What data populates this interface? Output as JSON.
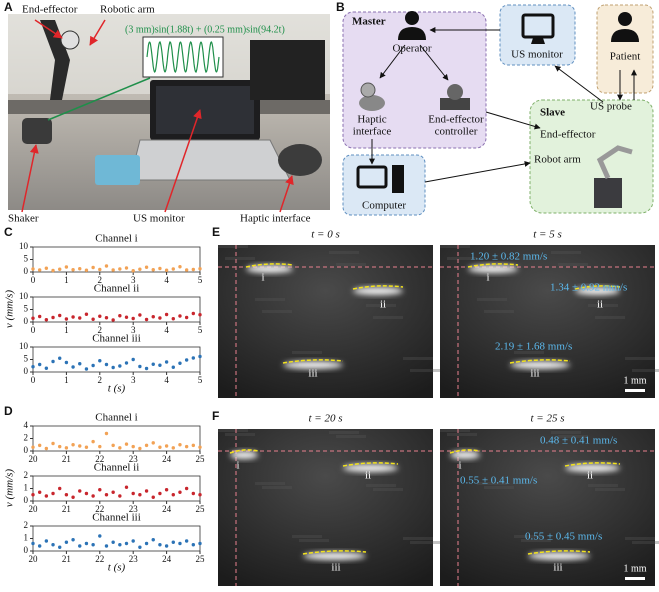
{
  "panel_a": {
    "letter": "A",
    "end_effector": "End-effector",
    "robotic_arm": "Robotic arm",
    "equation": "(3 mm)sin(1.88t) + (0.25 mm)sin(94.2t)",
    "shaker": "Shaker",
    "us_monitor": "US monitor",
    "haptic_interface": "Haptic interface"
  },
  "panel_b": {
    "letter": "B",
    "master": "Master",
    "operator": "Operator",
    "haptic_interface": [
      "Haptic",
      "interface"
    ],
    "end_effector_controller": [
      "End-effector",
      "controller"
    ],
    "us_monitor": "US monitor",
    "patient": "Patient",
    "slave": "Slave",
    "end_effector": "End-effector",
    "robot_arm": "Robot arm",
    "us_probe": "US probe",
    "computer": "Computer"
  },
  "panel_c": {
    "letter": "C",
    "y_label": "v (mm/s)",
    "x_label": "t (s)",
    "x": [
      0,
      0.2,
      0.4,
      0.6,
      0.8,
      1,
      1.2,
      1.4,
      1.6,
      1.8,
      2,
      2.2,
      2.4,
      2.6,
      2.8,
      3,
      3.2,
      3.4,
      3.6,
      3.8,
      4,
      4.2,
      4.4,
      4.6,
      4.8,
      5
    ],
    "xlim": [
      0,
      5
    ],
    "xticks": [
      0,
      1,
      2,
      3,
      4,
      5
    ],
    "channels": [
      {
        "name": "Channel i",
        "color": "#f2a255",
        "ylim": [
          0,
          10
        ],
        "yticks": [
          0,
          5,
          10
        ],
        "values": [
          1.2,
          0.8,
          1.5,
          0.6,
          1.1,
          2.0,
          0.9,
          1.3,
          0.7,
          1.8,
          1.0,
          2.4,
          0.8,
          1.2,
          1.6,
          0.5,
          1.1,
          1.9,
          0.9,
          1.4,
          0.7,
          1.2,
          2.1,
          0.8,
          1.0,
          1.3
        ]
      },
      {
        "name": "Channel ii",
        "color": "#c8262d",
        "ylim": [
          0,
          10
        ],
        "yticks": [
          0,
          5,
          10
        ],
        "values": [
          1.5,
          2.2,
          0.9,
          1.8,
          2.6,
          1.2,
          2.0,
          1.6,
          3.1,
          1.1,
          2.3,
          1.7,
          0.8,
          2.5,
          1.9,
          1.4,
          2.8,
          1.0,
          2.1,
          1.6,
          3.0,
          1.3,
          2.4,
          1.8,
          3.4,
          2.9
        ]
      },
      {
        "name": "Channel iii",
        "color": "#2c73b6",
        "ylim": [
          0,
          10
        ],
        "yticks": [
          0,
          5,
          10
        ],
        "values": [
          2.1,
          3.0,
          1.5,
          4.2,
          5.5,
          3.8,
          2.0,
          3.3,
          1.2,
          2.6,
          4.5,
          3.0,
          1.8,
          2.4,
          3.6,
          5.0,
          2.2,
          1.4,
          3.1,
          2.7,
          4.0,
          1.9,
          3.5,
          4.8,
          5.6,
          6.2
        ]
      }
    ]
  },
  "panel_d": {
    "letter": "D",
    "y_label": "v (mm/s)",
    "x_label": "t (s)",
    "x": [
      20,
      20.2,
      20.4,
      20.6,
      20.8,
      21,
      21.2,
      21.4,
      21.6,
      21.8,
      22,
      22.2,
      22.4,
      22.6,
      22.8,
      23,
      23.2,
      23.4,
      23.6,
      23.8,
      24,
      24.2,
      24.4,
      24.6,
      24.8,
      25
    ],
    "xlim": [
      20,
      25
    ],
    "xticks": [
      20,
      21,
      22,
      23,
      24,
      25
    ],
    "channels": [
      {
        "name": "Channel i",
        "color": "#f2a255",
        "ylim": [
          0,
          4
        ],
        "yticks": [
          0,
          2,
          4
        ],
        "values": [
          0.6,
          0.9,
          0.4,
          1.2,
          0.7,
          0.5,
          1.0,
          0.8,
          0.6,
          1.5,
          0.7,
          2.8,
          0.9,
          0.5,
          1.1,
          0.7,
          0.4,
          0.9,
          1.3,
          0.6,
          0.8,
          0.5,
          1.0,
          0.7,
          0.9,
          0.6
        ]
      },
      {
        "name": "Channel ii",
        "color": "#c8262d",
        "ylim": [
          0,
          2
        ],
        "yticks": [
          0,
          1,
          2
        ],
        "values": [
          0.5,
          0.7,
          0.4,
          0.6,
          1.0,
          0.5,
          0.3,
          0.8,
          0.6,
          0.4,
          0.9,
          0.5,
          0.7,
          0.4,
          1.1,
          0.6,
          0.5,
          0.8,
          0.3,
          0.6,
          0.9,
          0.5,
          0.7,
          1.0,
          0.6,
          0.5
        ]
      },
      {
        "name": "Channel iii",
        "color": "#2c73b6",
        "ylim": [
          0,
          2
        ],
        "yticks": [
          0,
          1,
          2
        ],
        "values": [
          0.6,
          0.4,
          0.8,
          0.5,
          0.3,
          0.7,
          0.9,
          0.4,
          0.6,
          0.5,
          1.2,
          0.4,
          0.7,
          0.5,
          0.6,
          0.8,
          0.3,
          0.6,
          0.9,
          0.5,
          0.4,
          0.7,
          0.6,
          0.8,
          0.5,
          0.6
        ]
      }
    ]
  },
  "panel_e": {
    "letter": "E",
    "scale": "1 mm",
    "images": [
      {
        "title": "t = 0 s",
        "labels": [
          "i",
          "ii",
          "iii"
        ]
      },
      {
        "title": "t = 5 s",
        "labels": [
          "i",
          "ii",
          "iii"
        ],
        "velocities": [
          "1.20 ± 0.82 mm/s",
          "1.34 ± 0.92 mm/s",
          "2.19 ± 1.68 mm/s"
        ]
      }
    ]
  },
  "panel_f": {
    "letter": "F",
    "scale": "1 mm",
    "images": [
      {
        "title": "t = 20 s",
        "labels": [
          "i",
          "ii",
          "iii"
        ]
      },
      {
        "title": "t = 25 s",
        "labels": [
          "i",
          "ii",
          "iii"
        ],
        "velocities": [
          "0.48 ± 0.41 mm/s",
          "0.55 ± 0.41 mm/s",
          "0.55 ± 0.45 mm/s"
        ]
      }
    ]
  }
}
